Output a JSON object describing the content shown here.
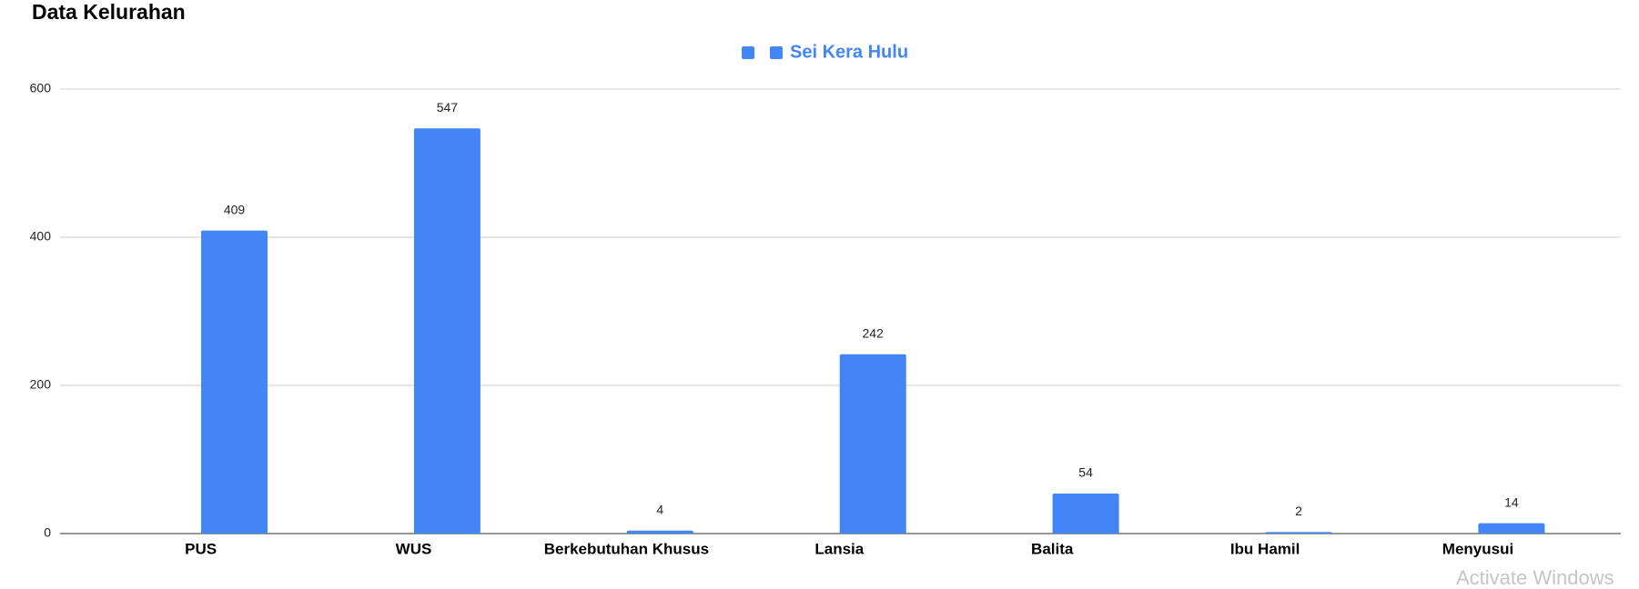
{
  "chart_data": {
    "type": "bar",
    "title": "Data Kelurahan",
    "categories": [
      "PUS",
      "WUS",
      "Berkebutuhan Khusus",
      "Lansia",
      "Balita",
      "Ibu Hamil",
      "Menyusui"
    ],
    "series": [
      {
        "name": "Sei Kera Hulu",
        "color": "#4285f4",
        "values": [
          409,
          547,
          4,
          242,
          54,
          2,
          14
        ]
      }
    ],
    "ylim": [
      0,
      600
    ],
    "yticks": [
      0,
      200,
      400,
      600
    ],
    "grid": true,
    "legend": "top"
  },
  "watermark": "Activate Windows"
}
